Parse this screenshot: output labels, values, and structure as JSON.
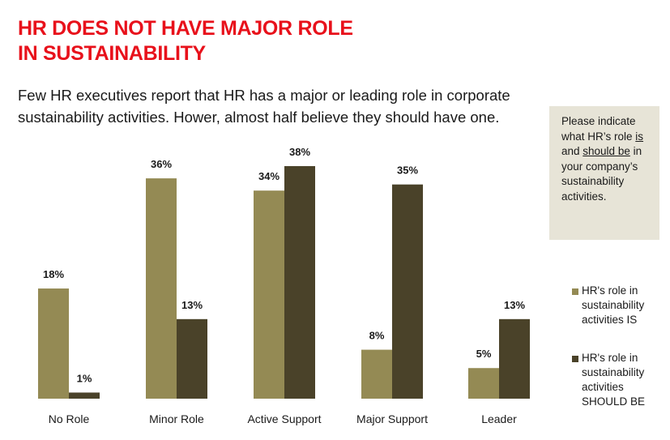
{
  "header": {
    "title_line1": "HR DOES NOT HAVE MAJOR ROLE",
    "title_line2": "IN SUSTAINABILITY",
    "subtitle_line1": "Few HR executives report that HR has a major or leading role in corporate",
    "subtitle_line2": "sustainability activities.  Hower, almost half believe they should have one."
  },
  "note": {
    "part1": "Please indicate what HR’s role ",
    "is_word": "is",
    "part2": " and ",
    "should_word": "should be",
    "part3": " in your company’s sustainability activities."
  },
  "colors": {
    "is": "#948a54",
    "should_be": "#4a4229",
    "title": "#e8111b",
    "note_bg": "#e7e4d7"
  },
  "chart_data": {
    "type": "bar",
    "title": "",
    "xlabel": "",
    "ylabel": "",
    "categories": [
      "No Role",
      "Minor Role",
      "Active Support",
      "Major Support",
      "Leader"
    ],
    "series": [
      {
        "name": "HR's role in sustainability activities IS",
        "values": [
          18,
          36,
          34,
          8,
          5
        ],
        "labels": [
          "18%",
          "36%",
          "34%",
          "8%",
          "5%"
        ]
      },
      {
        "name": "HR's role in sustainability activities SHOULD BE",
        "values": [
          1,
          13,
          38,
          35,
          13
        ],
        "labels": [
          "1%",
          "13%",
          "38%",
          "35%",
          "13%"
        ]
      }
    ],
    "ylim": [
      0,
      38
    ],
    "grid": false,
    "legend": "right"
  }
}
